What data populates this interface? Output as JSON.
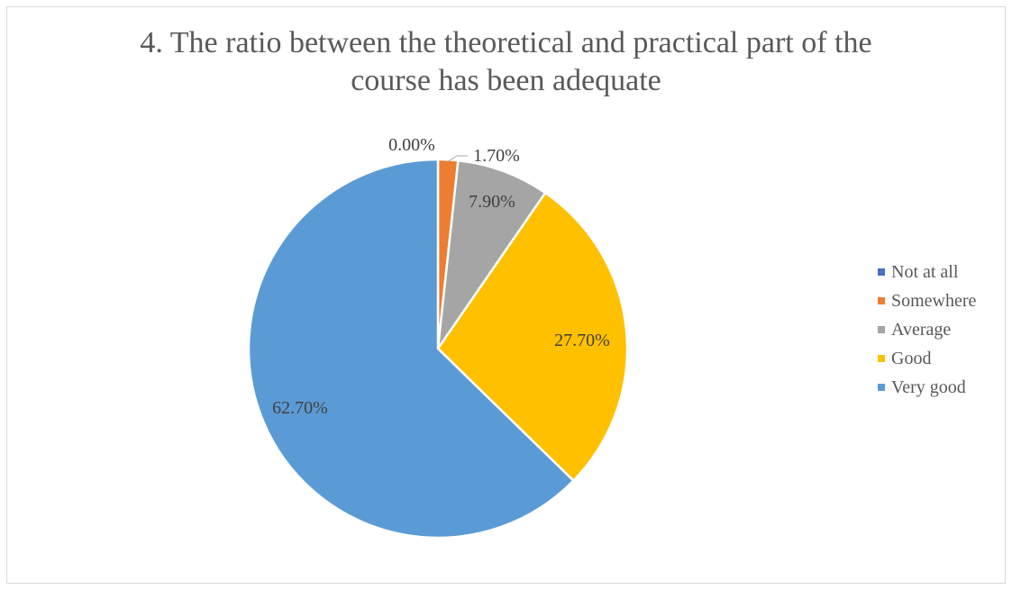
{
  "chart_data": {
    "type": "pie",
    "title_lines": [
      "4. The ratio between the theoretical and practical part of the",
      "course has been adequate"
    ],
    "categories": [
      "Not at all",
      "Somewhere",
      "Average",
      "Good",
      "Very good"
    ],
    "values": [
      0.0,
      1.7,
      7.9,
      27.7,
      62.7
    ],
    "labels": [
      "0.00%",
      "1.70%",
      "7.90%",
      "27.70%",
      "62.70%"
    ],
    "colors": [
      "#4472C4",
      "#ED7D31",
      "#A5A5A5",
      "#FFC000",
      "#5B9BD5"
    ],
    "legend_position": "right"
  }
}
